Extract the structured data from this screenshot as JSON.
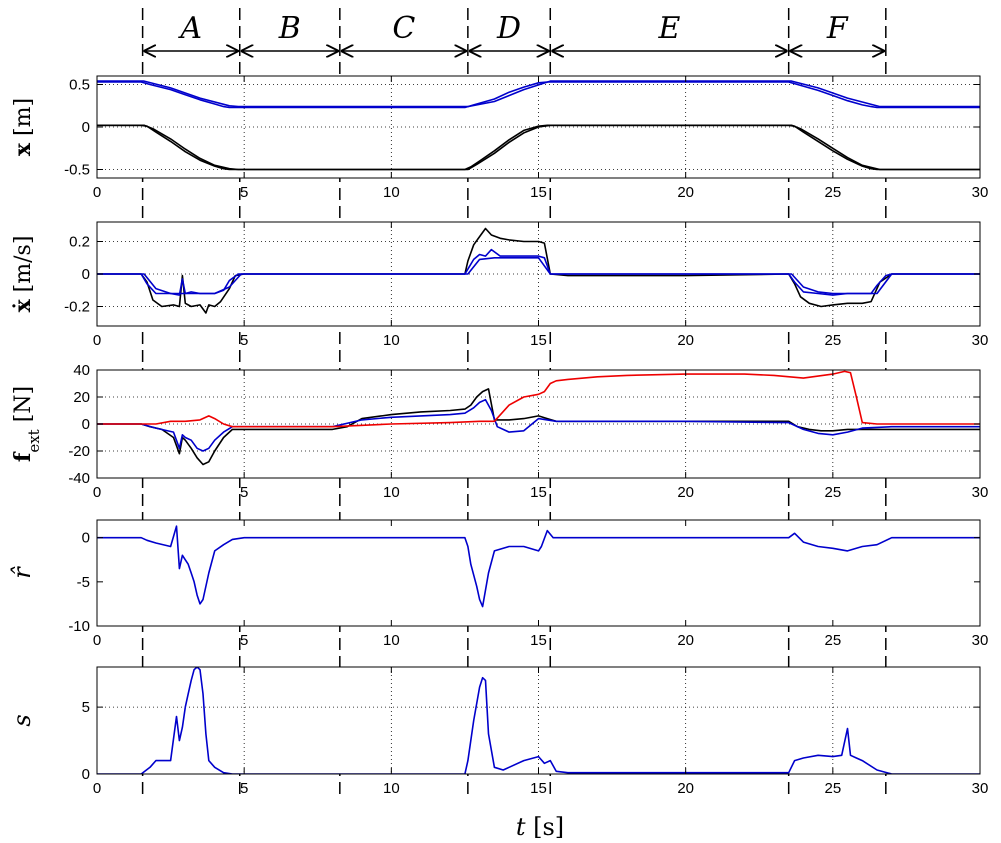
{
  "phases": [
    "A",
    "B",
    "C",
    "D",
    "E",
    "F"
  ],
  "chart_data": [
    {
      "type": "line",
      "ylabel": "x [m]",
      "ylim": [
        -0.6,
        0.6
      ],
      "yticks": [
        "0.5",
        "0",
        "-0.5"
      ],
      "xlim": [
        0,
        30
      ],
      "xticks": [
        "0",
        "5",
        "10",
        "15",
        "20",
        "25",
        "30"
      ],
      "grid": true,
      "series": [
        {
          "color": "#000000",
          "x": [
            0,
            1.5,
            1.7,
            2,
            2.5,
            3,
            3.5,
            4,
            4.3,
            4.5,
            6,
            8,
            10,
            12,
            12.5,
            12.7,
            13,
            13.5,
            14,
            14.5,
            15,
            15.3,
            16,
            18,
            20,
            22,
            23.5,
            23.7,
            24,
            24.5,
            25,
            25.5,
            26,
            26.3,
            26.5,
            28,
            30
          ],
          "y": [
            0.02,
            0.02,
            0.01,
            -0.06,
            -0.17,
            -0.29,
            -0.39,
            -0.46,
            -0.49,
            -0.5,
            -0.5,
            -0.5,
            -0.5,
            -0.5,
            -0.5,
            -0.47,
            -0.4,
            -0.28,
            -0.15,
            -0.04,
            0.01,
            0.02,
            0.02,
            0.02,
            0.02,
            0.02,
            0.02,
            0.01,
            -0.06,
            -0.17,
            -0.28,
            -0.38,
            -0.46,
            -0.49,
            -0.5,
            -0.5,
            -0.5
          ]
        },
        {
          "color": "#000000",
          "x": [
            0,
            1.6,
            1.9,
            2.5,
            3,
            3.5,
            4,
            4.5,
            4.8,
            6,
            10,
            12.6,
            12.9,
            13.5,
            14,
            14.5,
            15,
            15.4,
            16,
            20,
            23.6,
            23.9,
            24.5,
            25,
            25.5,
            26,
            26.6,
            28,
            30
          ],
          "y": [
            0.02,
            0.02,
            -0.02,
            -0.14,
            -0.26,
            -0.37,
            -0.45,
            -0.49,
            -0.5,
            -0.5,
            -0.5,
            -0.5,
            -0.44,
            -0.31,
            -0.18,
            -0.07,
            0.0,
            0.02,
            0.02,
            0.02,
            0.02,
            -0.02,
            -0.14,
            -0.25,
            -0.36,
            -0.45,
            -0.5,
            -0.5,
            -0.5
          ]
        },
        {
          "color": "#0000cc",
          "x": [
            0,
            1.5,
            1.8,
            2.5,
            3,
            3.5,
            4,
            4.3,
            4.5,
            6,
            10,
            12.5,
            12.8,
            13.5,
            14,
            14.5,
            15,
            15.3,
            16,
            20,
            23.5,
            23.8,
            24.5,
            25,
            25.5,
            26,
            26.3,
            26.5,
            28,
            30
          ],
          "y": [
            0.53,
            0.53,
            0.5,
            0.44,
            0.38,
            0.32,
            0.27,
            0.24,
            0.23,
            0.23,
            0.23,
            0.23,
            0.26,
            0.33,
            0.41,
            0.47,
            0.52,
            0.53,
            0.53,
            0.53,
            0.53,
            0.5,
            0.43,
            0.37,
            0.31,
            0.26,
            0.24,
            0.23,
            0.23,
            0.23
          ]
        },
        {
          "color": "#0000cc",
          "x": [
            0,
            1.6,
            2.5,
            3.5,
            4.5,
            4.8,
            6,
            10,
            12.6,
            13.5,
            14.5,
            15.4,
            16,
            20,
            23.6,
            24.5,
            25.5,
            26.6,
            28,
            30
          ],
          "y": [
            0.54,
            0.54,
            0.46,
            0.34,
            0.25,
            0.24,
            0.24,
            0.24,
            0.24,
            0.3,
            0.44,
            0.54,
            0.54,
            0.54,
            0.54,
            0.46,
            0.34,
            0.24,
            0.24,
            0.24
          ]
        }
      ]
    },
    {
      "type": "line",
      "ylabel": "ẋ [m/s]",
      "ylim": [
        -0.32,
        0.32
      ],
      "yticks": [
        "0.2",
        "0",
        "-0.2"
      ],
      "xlim": [
        0,
        30
      ],
      "xticks": [
        "0",
        "5",
        "10",
        "15",
        "20",
        "25",
        "30"
      ],
      "grid": true,
      "series": [
        {
          "color": "#000000",
          "x": [
            0,
            1.5,
            1.7,
            1.9,
            2.2,
            2.6,
            2.8,
            2.9,
            3.0,
            3.2,
            3.5,
            3.7,
            3.8,
            4.0,
            4.2,
            4.5,
            4.7,
            5,
            8,
            12.5,
            12.6,
            12.8,
            13.0,
            13.2,
            13.4,
            13.7,
            14,
            14.5,
            15,
            15.2,
            15.4,
            16,
            20,
            23.5,
            23.7,
            23.9,
            24.2,
            24.6,
            25,
            25.5,
            26,
            26.3,
            26.6,
            27,
            30
          ],
          "y": [
            0,
            0,
            -0.05,
            -0.16,
            -0.2,
            -0.19,
            -0.2,
            -0.01,
            -0.18,
            -0.2,
            -0.19,
            -0.24,
            -0.19,
            -0.2,
            -0.17,
            -0.09,
            -0.01,
            0,
            0,
            0,
            0.08,
            0.18,
            0.23,
            0.28,
            0.24,
            0.22,
            0.21,
            0.2,
            0.2,
            0.19,
            0.0,
            -0.01,
            -0.01,
            0,
            -0.06,
            -0.14,
            -0.18,
            -0.2,
            -0.19,
            -0.18,
            -0.18,
            -0.17,
            -0.05,
            0,
            0
          ]
        },
        {
          "color": "#0000cc",
          "x": [
            0,
            1.5,
            1.7,
            2,
            2.5,
            2.8,
            2.9,
            3.0,
            3.2,
            3.5,
            4,
            4.3,
            4.5,
            4.8,
            5,
            8,
            12.5,
            12.6,
            12.8,
            13.0,
            13.2,
            13.4,
            13.7,
            14,
            14.5,
            15,
            15.2,
            15.4,
            16,
            20,
            23.5,
            23.7,
            24,
            24.5,
            25,
            25.5,
            26,
            26.3,
            26.5,
            26.8,
            27,
            30
          ],
          "y": [
            0,
            0,
            -0.06,
            -0.12,
            -0.12,
            -0.13,
            -0.03,
            -0.12,
            -0.11,
            -0.12,
            -0.12,
            -0.1,
            -0.04,
            0,
            0,
            0,
            0,
            0.03,
            0.09,
            0.12,
            0.11,
            0.15,
            0.11,
            0.11,
            0.11,
            0.11,
            0.1,
            0,
            0,
            0,
            0,
            -0.05,
            -0.11,
            -0.12,
            -0.13,
            -0.12,
            -0.12,
            -0.12,
            -0.07,
            -0.01,
            0,
            0
          ]
        },
        {
          "color": "#0000cc",
          "x": [
            0,
            1.6,
            2,
            2.5,
            3,
            3.5,
            4,
            4.5,
            4.9,
            5,
            8,
            12.6,
            13,
            13.5,
            14,
            15,
            15.4,
            16,
            20,
            23.6,
            24,
            24.5,
            25,
            25.5,
            26,
            26.5,
            27,
            30
          ],
          "y": [
            0,
            0,
            -0.09,
            -0.12,
            -0.12,
            -0.12,
            -0.12,
            -0.08,
            0,
            0,
            0,
            0,
            0.09,
            0.1,
            0.1,
            0.1,
            0,
            0,
            0,
            0,
            -0.08,
            -0.11,
            -0.12,
            -0.12,
            -0.12,
            -0.12,
            0,
            0
          ]
        }
      ]
    },
    {
      "type": "line",
      "ylabel": "f_ext [N]",
      "ylim": [
        -40,
        40
      ],
      "yticks": [
        "40",
        "20",
        "0",
        "-20",
        "-40"
      ],
      "xlim": [
        0,
        30
      ],
      "xticks": [
        "0",
        "5",
        "10",
        "15",
        "20",
        "25",
        "30"
      ],
      "grid": true,
      "series": [
        {
          "color": "#000000",
          "x": [
            0,
            1.5,
            1.8,
            2.2,
            2.6,
            2.8,
            2.9,
            3.0,
            3.2,
            3.4,
            3.6,
            3.8,
            4.0,
            4.3,
            4.6,
            5,
            8,
            8.5,
            9,
            10,
            11,
            12,
            12.5,
            12.7,
            12.9,
            13.1,
            13.3,
            13.5,
            14,
            14.5,
            15,
            15.3,
            15.6,
            16,
            20,
            23.5,
            23.8,
            24.2,
            24.6,
            25,
            25.5,
            26,
            27,
            30
          ],
          "y": [
            0,
            0,
            -2,
            -4,
            -10,
            -22,
            -10,
            -12,
            -18,
            -25,
            -30,
            -28,
            -20,
            -10,
            -4,
            -4,
            -4,
            -2,
            4,
            7,
            9,
            10,
            11,
            14,
            20,
            24,
            26,
            3,
            3,
            4,
            6,
            4,
            2,
            2,
            2,
            2,
            -2,
            -4,
            -5,
            -5,
            -4,
            -4,
            -4,
            -4
          ]
        },
        {
          "color": "#0000cc",
          "x": [
            0,
            1.5,
            2,
            2.6,
            2.8,
            2.9,
            3,
            3.2,
            3.4,
            3.6,
            3.8,
            4,
            4.3,
            4.6,
            5,
            8,
            9,
            10,
            11,
            12,
            12.5,
            12.8,
            13,
            13.2,
            13.4,
            13.6,
            14,
            14.5,
            15,
            15.3,
            15.6,
            16,
            20,
            23.5,
            24,
            24.5,
            25,
            25.5,
            26,
            27,
            30
          ],
          "y": [
            0,
            0,
            -3,
            -6,
            -18,
            -8,
            -10,
            -12,
            -18,
            -20,
            -18,
            -12,
            -6,
            -2,
            -2,
            -2,
            3,
            5,
            6,
            7,
            8,
            12,
            16,
            18,
            10,
            -2,
            -6,
            -5,
            4,
            3,
            2,
            2,
            2,
            1,
            -4,
            -7,
            -8,
            -6,
            -3,
            -2,
            -2
          ]
        },
        {
          "color": "#ee0000",
          "x": [
            0,
            1.5,
            2,
            2.5,
            3,
            3.5,
            3.8,
            4.0,
            4.3,
            4.6,
            5,
            8,
            10,
            12,
            13,
            13.5,
            14,
            14.5,
            15,
            15.2,
            15.4,
            15.6,
            16,
            17,
            18,
            20,
            22,
            23,
            24,
            25,
            25.4,
            25.6,
            25.8,
            26,
            26.5,
            27,
            30
          ],
          "y": [
            0,
            0,
            0,
            2,
            2,
            3,
            6,
            4,
            0,
            -2,
            -2,
            -2,
            0,
            1,
            2,
            2,
            14,
            20,
            22,
            24,
            30,
            32,
            33,
            35,
            36,
            37,
            37,
            36,
            34,
            37,
            39,
            38,
            20,
            1,
            0,
            0,
            0
          ]
        }
      ]
    },
    {
      "type": "line",
      "ylabel": "r̂",
      "ylim": [
        -10,
        2
      ],
      "yticks": [
        "0",
        "-5",
        "-10"
      ],
      "xlim": [
        0,
        30
      ],
      "xticks": [
        "0",
        "5",
        "10",
        "15",
        "20",
        "25",
        "30"
      ],
      "grid": false,
      "series": [
        {
          "color": "#0000cc",
          "x": [
            0,
            1.5,
            1.7,
            2,
            2.5,
            2.7,
            2.8,
            2.9,
            3,
            3.1,
            3.2,
            3.3,
            3.4,
            3.5,
            3.6,
            3.8,
            4,
            4.3,
            4.6,
            5,
            8,
            12.5,
            12.6,
            12.7,
            12.9,
            13,
            13.1,
            13.3,
            13.5,
            14,
            14.5,
            15,
            15.1,
            15.3,
            15.5,
            16,
            20,
            23.5,
            23.7,
            24,
            24.5,
            25,
            25.5,
            26,
            26.5,
            27,
            30
          ],
          "y": [
            0,
            0,
            -0.3,
            -0.6,
            -1,
            1.3,
            -3.5,
            -2,
            -2.5,
            -3,
            -4,
            -5,
            -6.5,
            -7.5,
            -7,
            -4,
            -1.5,
            -0.8,
            -0.2,
            0,
            0,
            0,
            -1,
            -3,
            -5.5,
            -7,
            -7.8,
            -4,
            -1.5,
            -1,
            -1,
            -1.5,
            -1,
            0.8,
            0,
            0,
            0,
            0,
            0.5,
            -0.5,
            -1,
            -1.2,
            -1.5,
            -1,
            -0.8,
            0,
            0
          ]
        }
      ]
    },
    {
      "type": "line",
      "ylabel": "s",
      "ylim": [
        0,
        8
      ],
      "yticks": [
        "5",
        "0"
      ],
      "xticks": [
        "0",
        "5",
        "10",
        "15",
        "20",
        "25",
        "30"
      ],
      "xlim": [
        0,
        30
      ],
      "xlabel": "t [s]",
      "grid": true,
      "series": [
        {
          "color": "#0000cc",
          "x": [
            0,
            1.5,
            1.8,
            2,
            2.5,
            2.7,
            2.8,
            2.9,
            3,
            3.1,
            3.2,
            3.3,
            3.4,
            3.5,
            3.6,
            3.7,
            3.8,
            4,
            4.3,
            4.6,
            5,
            8,
            12.5,
            12.6,
            12.8,
            13,
            13.1,
            13.2,
            13.3,
            13.5,
            13.8,
            14,
            14.5,
            15,
            15.2,
            15.4,
            15.6,
            16,
            20,
            23.5,
            23.7,
            24,
            24.5,
            25,
            25.3,
            25.5,
            25.6,
            25.8,
            26,
            26.5,
            27,
            30
          ],
          "y": [
            0,
            0,
            0.5,
            1,
            1,
            4.3,
            2.5,
            3.5,
            5,
            6,
            7,
            7.8,
            8,
            7.8,
            6,
            3,
            1,
            0.5,
            0.1,
            0,
            0,
            0,
            0,
            1,
            4,
            6.5,
            7.2,
            7,
            3,
            0.5,
            0.3,
            0.5,
            1,
            1.3,
            0.8,
            1,
            0.2,
            0.1,
            0.1,
            0.1,
            1,
            1.2,
            1.4,
            1.3,
            1.4,
            3.4,
            1.4,
            1.2,
            1,
            0.3,
            0,
            0
          ]
        }
      ]
    }
  ]
}
